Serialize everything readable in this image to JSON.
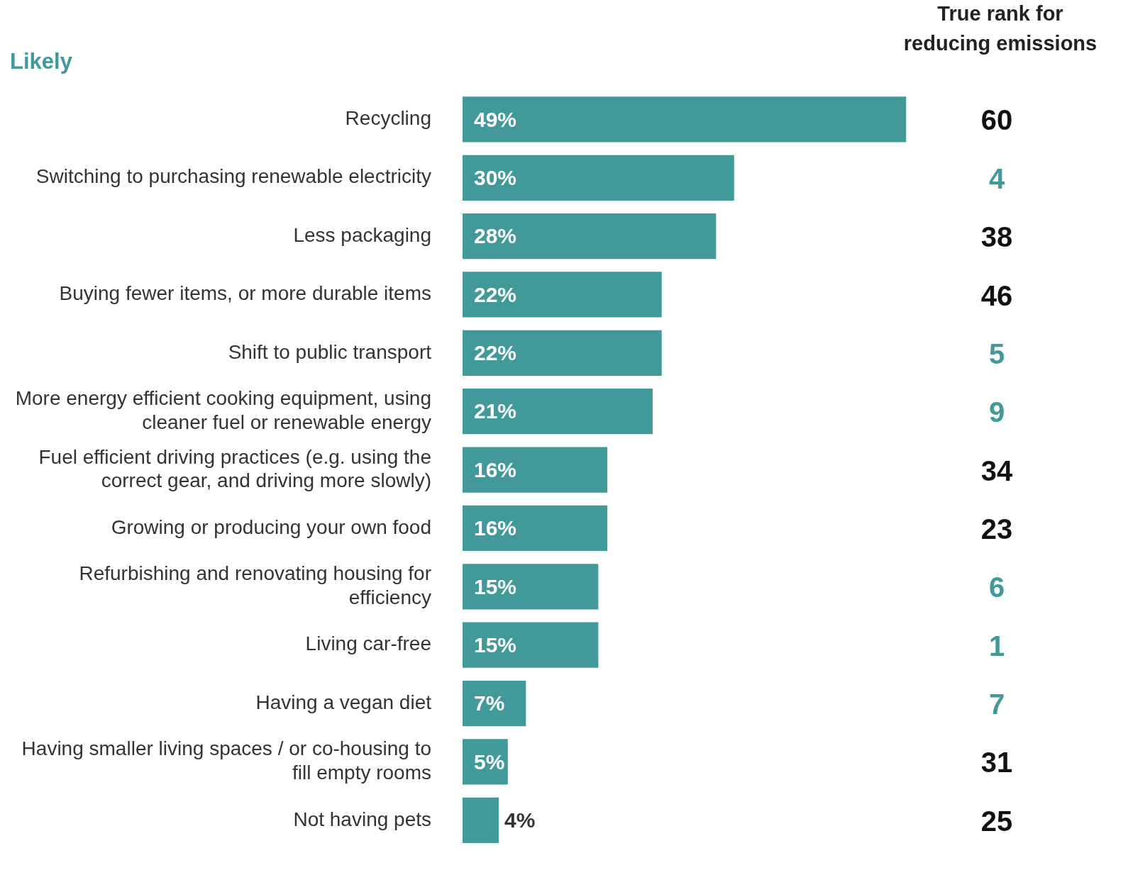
{
  "chart_data": {
    "type": "bar",
    "orientation": "horizontal",
    "title": "Likely",
    "categories": [
      "Recycling",
      "Switching to purchasing renewable electricity",
      "Less packaging",
      "Buying fewer items, or more durable items",
      "Shift to public transport",
      "More energy efficient cooking equipment, using cleaner fuel or renewable energy",
      "Fuel efficient driving practices (e.g. using the correct gear, and driving more slowly)",
      "Growing or producing your own food",
      "Refurbishing and renovating housing for efficiency",
      "Living car-free",
      "Having a vegan diet",
      "Having smaller living spaces / or co-housing to fill empty rooms",
      "Not having pets"
    ],
    "values": [
      49,
      30,
      28,
      22,
      22,
      21,
      16,
      16,
      15,
      15,
      7,
      5,
      4
    ],
    "value_labels": [
      "49%",
      "30%",
      "28%",
      "22%",
      "22%",
      "21%",
      "16%",
      "16%",
      "15%",
      "15%",
      "7%",
      "5%",
      "4%"
    ],
    "color": "#41999a",
    "annotations": [
      "True rank for reducing emissions",
      "60",
      "4",
      "38",
      "46",
      "5",
      "9",
      "34",
      "23",
      "6",
      "1",
      "7",
      "31",
      "25"
    ],
    "legend": false
  }
}
